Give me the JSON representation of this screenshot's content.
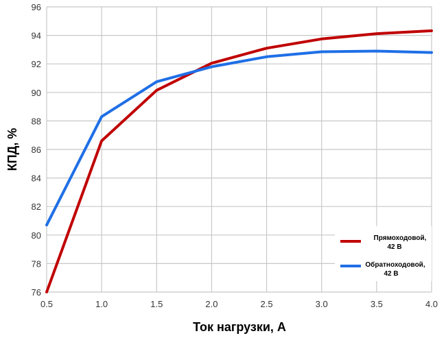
{
  "chart_data": {
    "type": "line",
    "title": "",
    "xlabel": "Ток нагрузки, А",
    "ylabel": "КПД, %",
    "xlim": [
      0.5,
      4.0
    ],
    "ylim": [
      76,
      96
    ],
    "x_ticks": [
      "0.5",
      "1.0",
      "1.5",
      "2.0",
      "2.5",
      "3.0",
      "3.5",
      "4.0"
    ],
    "y_ticks": [
      "76",
      "78",
      "80",
      "82",
      "84",
      "86",
      "88",
      "90",
      "92",
      "94",
      "96"
    ],
    "grid": true,
    "legend_position": "bottom-right",
    "series": [
      {
        "name_line1": "Прямоходовой,",
        "name_line2": "42 В",
        "color": "#c00000",
        "x": [
          0.5,
          1.0,
          1.5,
          2.0,
          2.5,
          3.0,
          3.5,
          4.0
        ],
        "y": [
          76.0,
          86.6,
          90.15,
          92.05,
          93.1,
          93.75,
          94.12,
          94.32
        ]
      },
      {
        "name_line1": "Обратноходовой,",
        "name_line2": "42 В",
        "color": "#1f6fe6",
        "x": [
          0.5,
          1.0,
          1.5,
          2.0,
          2.5,
          3.0,
          3.5,
          4.0
        ],
        "y": [
          80.7,
          88.3,
          90.75,
          91.8,
          92.5,
          92.85,
          92.9,
          92.8
        ]
      }
    ]
  }
}
